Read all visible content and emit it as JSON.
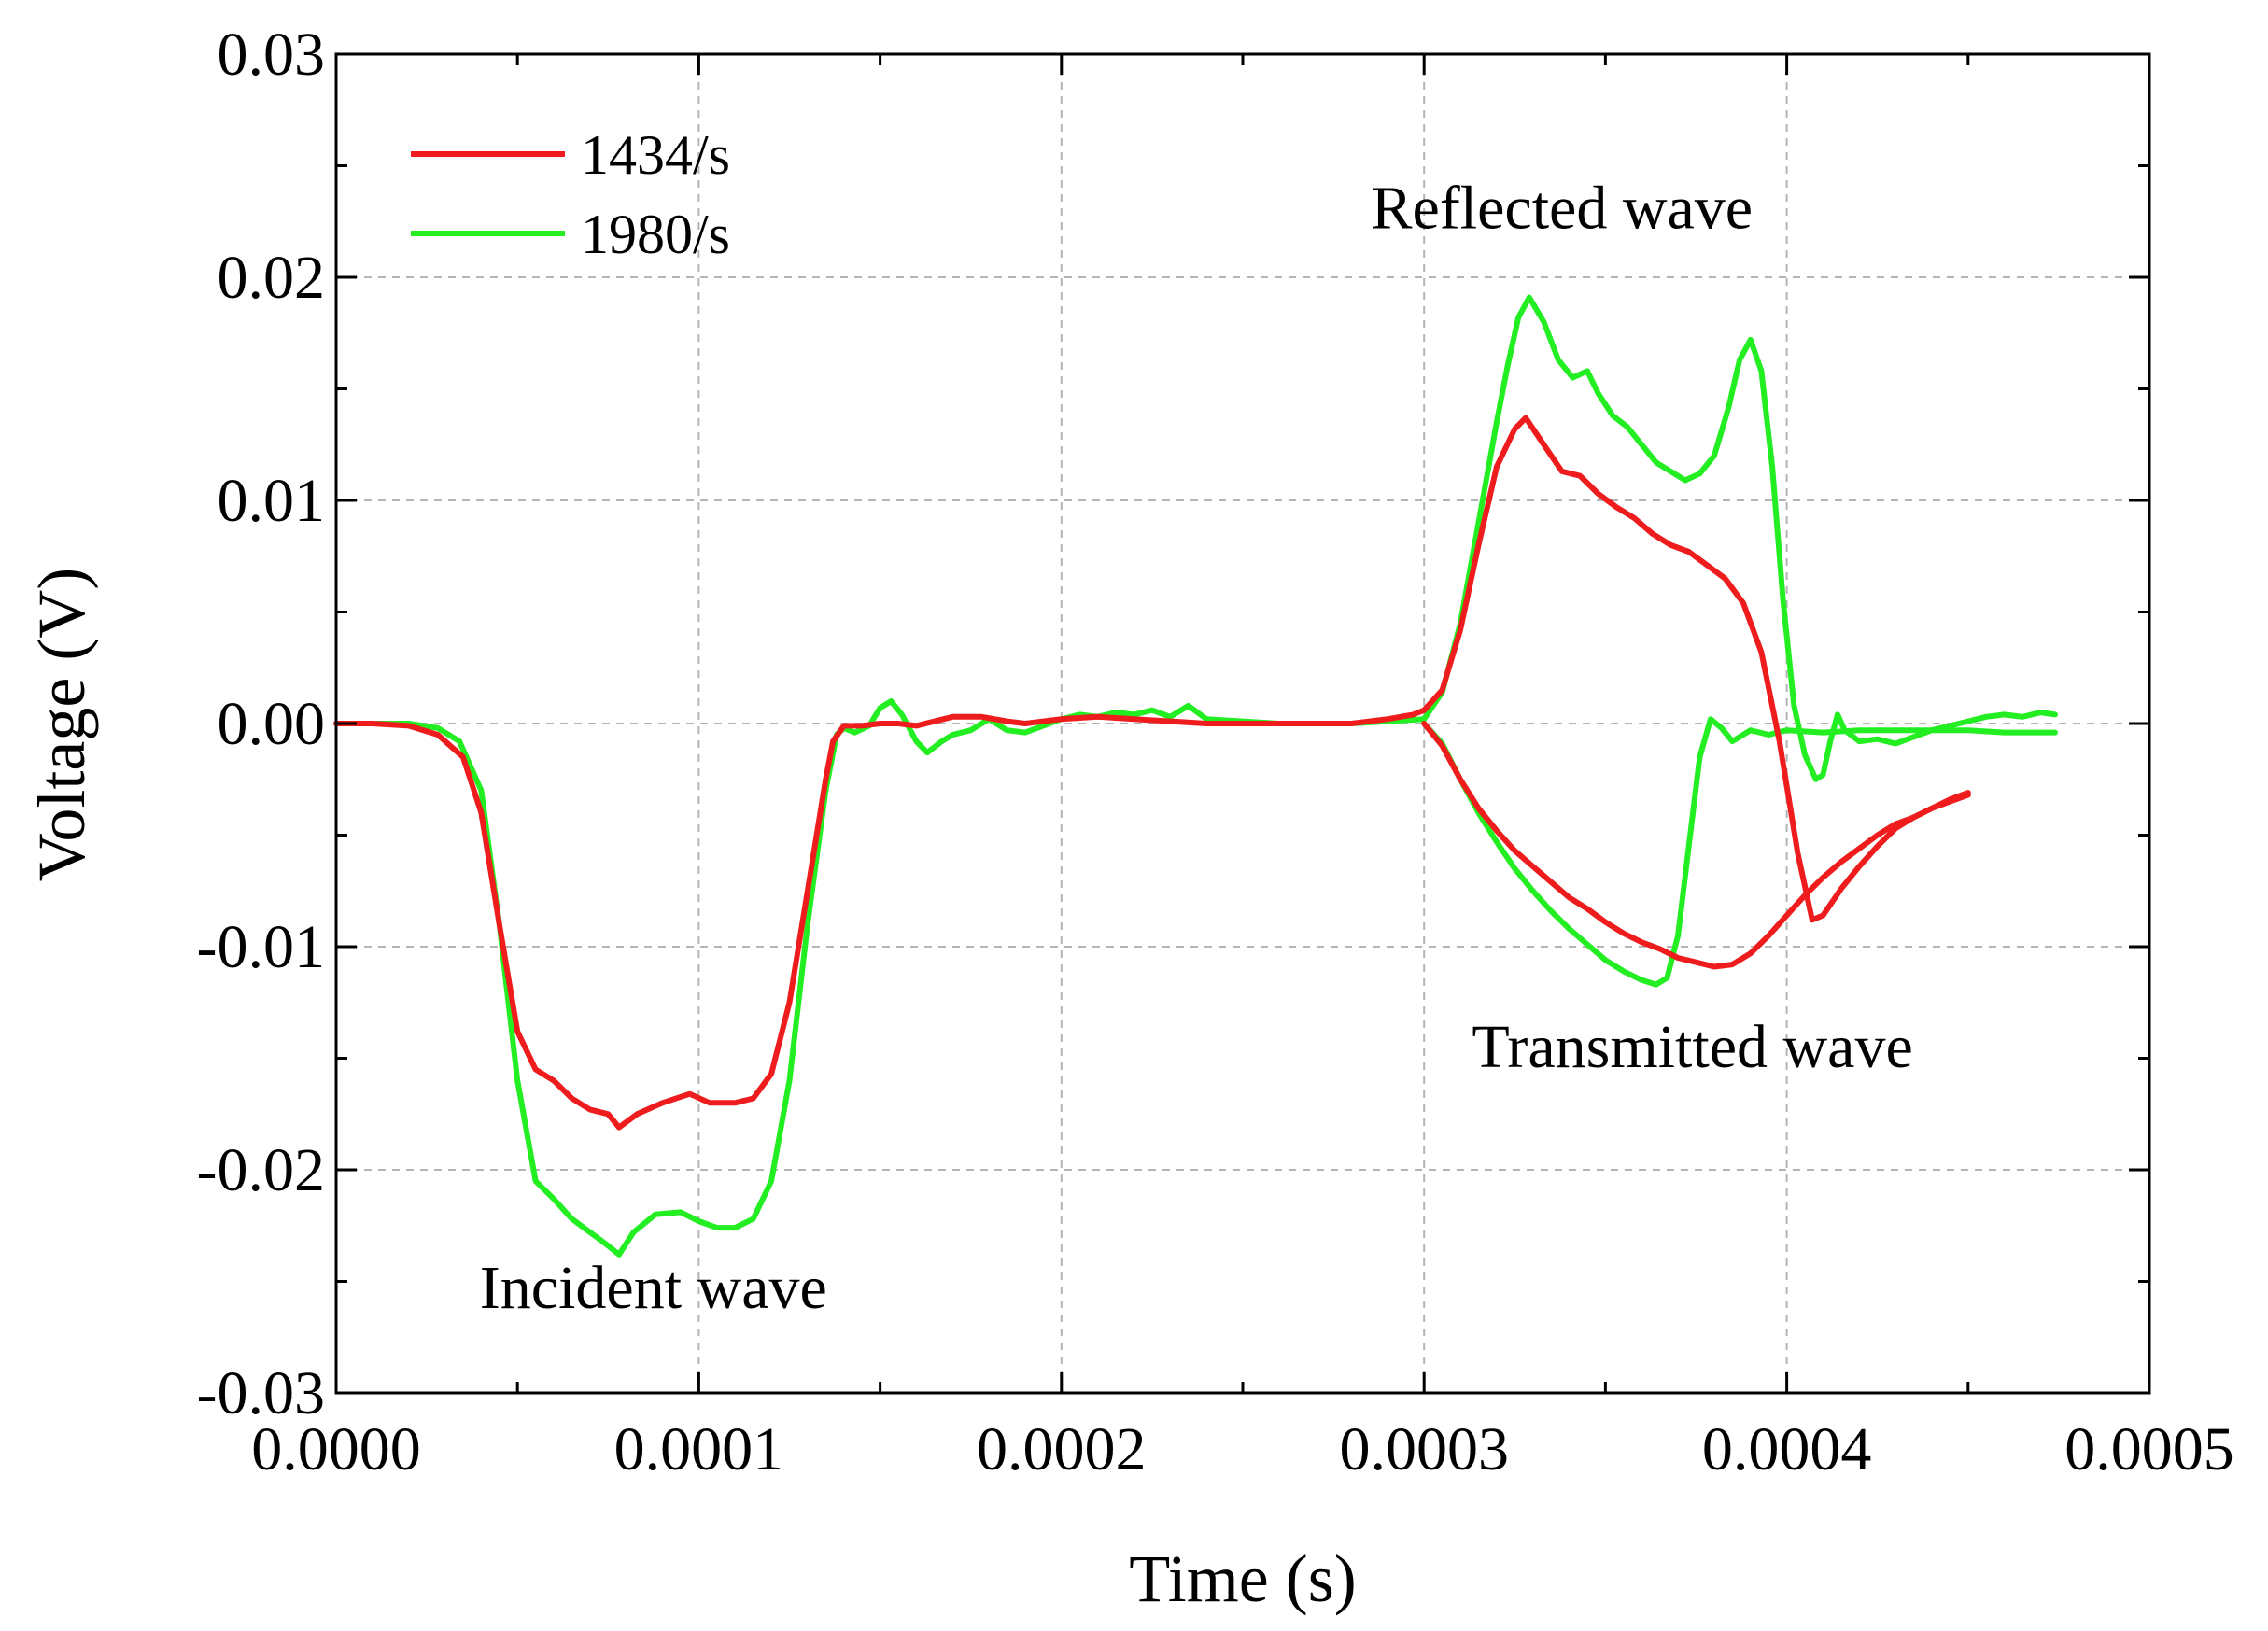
{
  "chart_data": {
    "type": "line",
    "title": "",
    "xlabel": "Time (s)",
    "ylabel": "Voltage (V)",
    "xlim": [
      0,
      0.0005
    ],
    "ylim": [
      -0.03,
      0.03
    ],
    "grid": true,
    "legend_position": "top-left",
    "x_ticks": [
      {
        "value": 0.0,
        "label": "0.0000"
      },
      {
        "value": 0.0001,
        "label": "0.0001"
      },
      {
        "value": 0.0002,
        "label": "0.0002"
      },
      {
        "value": 0.0003,
        "label": "0.0003"
      },
      {
        "value": 0.0004,
        "label": "0.0004"
      },
      {
        "value": 0.0005,
        "label": "0.0005"
      }
    ],
    "y_ticks": [
      {
        "value": 0.03,
        "label": "0.03"
      },
      {
        "value": 0.02,
        "label": "0.02"
      },
      {
        "value": 0.01,
        "label": "0.01"
      },
      {
        "value": 0.0,
        "label": "0.00"
      },
      {
        "value": -0.01,
        "label": "-0.01"
      },
      {
        "value": -0.02,
        "label": "-0.02"
      },
      {
        "value": -0.03,
        "label": "-0.03"
      }
    ],
    "annotations": [
      {
        "text": "Reflected wave",
        "x": 0.000338,
        "y": 0.0222
      },
      {
        "text": "Incident wave",
        "x": 8.75e-05,
        "y": -0.0262
      },
      {
        "text": "Transmitted wave",
        "x": 0.000374,
        "y": -0.0154
      }
    ],
    "series": [
      {
        "name": "1434/s",
        "color": "#ee1c1c",
        "segments": [
          {
            "role": "incident",
            "x": [
              0,
              1e-05,
              2e-05,
              2.8e-05,
              3.5e-05,
              4e-05,
              4.5e-05,
              5e-05,
              5.5e-05,
              6e-05,
              6.5e-05,
              7e-05,
              7.5e-05,
              7.8e-05,
              8.3e-05,
              9e-05,
              9.75e-05,
              0.000103,
              0.00011,
              0.000115,
              0.00012,
              0.000125,
              0.00013,
              0.000135,
              0.000137,
              0.00014,
              0.000145,
              0.00015,
              0.000155,
              0.00016,
              0.000165,
              0.00017,
              0.000178,
              0.000185,
              0.00019,
              0.0002,
              0.00021,
              0.00022,
              0.00023,
              0.00024,
              0.00025,
              0.00026,
              0.00027,
              0.00028,
              0.00029,
              0.000297,
              0.0003
            ],
            "y": [
              0,
              0,
              -0.0001,
              -0.0005,
              -0.0015,
              -0.004,
              -0.009,
              -0.0138,
              -0.0155,
              -0.016,
              -0.0168,
              -0.0173,
              -0.0175,
              -0.0181,
              -0.0175,
              -0.017,
              -0.0166,
              -0.017,
              -0.017,
              -0.0168,
              -0.0157,
              -0.0125,
              -0.0075,
              -0.0025,
              -0.0008,
              -0.0001,
              -0.0001,
              0.0,
              0.0,
              -0.0001,
              0.0001,
              0.0003,
              0.0003,
              0.0001,
              0.0,
              0.0002,
              0.0003,
              0.0002,
              0.0001,
              0.0,
              0.0,
              0.0,
              0.0,
              0.0,
              0.0002,
              0.0004,
              0.0006
            ]
          },
          {
            "role": "reflected",
            "x": [
              0.0003,
              0.000305,
              0.00031,
              0.000315,
              0.00032,
              0.000325,
              0.000328,
              0.000333,
              0.000338,
              0.000343,
              0.000348,
              0.000353,
              0.000358,
              0.000363,
              0.000368,
              0.000373,
              0.000378,
              0.000383,
              0.000388,
              0.000393,
              0.000398,
              0.000403,
              0.000407,
              0.00041,
              0.000415,
              0.00042,
              0.000425,
              0.00043,
              0.000435,
              0.00044,
              0.000445,
              0.00045
            ],
            "y": [
              0.0006,
              0.0015,
              0.0042,
              0.008,
              0.0115,
              0.0132,
              0.0137,
              0.0125,
              0.0113,
              0.0111,
              0.0103,
              0.0097,
              0.0092,
              0.0085,
              0.008,
              0.0077,
              0.0071,
              0.0065,
              0.0054,
              0.0032,
              -0.0008,
              -0.0058,
              -0.0088,
              -0.0086,
              -0.0074,
              -0.0064,
              -0.0055,
              -0.0047,
              -0.0042,
              -0.0038,
              -0.0034,
              -0.0031
            ]
          },
          {
            "role": "transmitted",
            "x": [
              0.0003,
              0.000305,
              0.00031,
              0.000315,
              0.00032,
              0.000325,
              0.00033,
              0.000335,
              0.00034,
              0.000345,
              0.00035,
              0.000355,
              0.00036,
              0.000365,
              0.00037,
              0.000375,
              0.00038,
              0.000385,
              0.00039,
              0.000395,
              0.0004,
              0.000405,
              0.00041,
              0.000415,
              0.00042,
              0.000425,
              0.00043,
              0.000435,
              0.00044,
              0.000445,
              0.00045
            ],
            "y": [
              0.0,
              -0.001,
              -0.0025,
              -0.0038,
              -0.0048,
              -0.0057,
              -0.0064,
              -0.0071,
              -0.0078,
              -0.0083,
              -0.0089,
              -0.0094,
              -0.0098,
              -0.0101,
              -0.0105,
              -0.0107,
              -0.0109,
              -0.0108,
              -0.0103,
              -0.0095,
              -0.0086,
              -0.0077,
              -0.0069,
              -0.0062,
              -0.0056,
              -0.005,
              -0.0045,
              -0.0042,
              -0.0038,
              -0.0035,
              -0.0032
            ]
          }
        ]
      },
      {
        "name": "1980/s",
        "color": "#22ee22",
        "segments": [
          {
            "role": "incident",
            "x": [
              0,
              1e-05,
              2e-05,
              2.8e-05,
              3.4e-05,
              4e-05,
              4.5e-05,
              5e-05,
              5.5e-05,
              6e-05,
              6.5e-05,
              7e-05,
              7.5e-05,
              7.8e-05,
              8.2e-05,
              8.8e-05,
              9.5e-05,
              0.0001,
              0.000105,
              0.00011,
              0.000115,
              0.00012,
              0.000125,
              0.00013,
              0.000135,
              0.000138,
              0.00014,
              0.000143,
              0.000147,
              0.00015,
              0.000153,
              0.000156,
              0.00016,
              0.000163,
              0.000167,
              0.00017,
              0.000175,
              0.00018,
              0.000185,
              0.00019,
              0.000195,
              0.0002,
              0.000205,
              0.00021,
              0.000215,
              0.00022,
              0.000225,
              0.00023,
              0.000235,
              0.00024,
              0.00025,
              0.00026,
              0.00027,
              0.00028,
              0.00029,
              0.0003
            ],
            "y": [
              0,
              0,
              0,
              -0.0002,
              -0.0008,
              -0.003,
              -0.009,
              -0.016,
              -0.0205,
              -0.0213,
              -0.0222,
              -0.0228,
              -0.0234,
              -0.0238,
              -0.0228,
              -0.022,
              -0.0219,
              -0.0223,
              -0.0226,
              -0.0226,
              -0.0222,
              -0.0205,
              -0.016,
              -0.009,
              -0.003,
              -0.0005,
              -0.0002,
              -0.0004,
              -0.0001,
              0.0007,
              0.001,
              0.0004,
              -0.0008,
              -0.0013,
              -0.0008,
              -0.0005,
              -0.0003,
              0.0002,
              -0.0003,
              -0.0004,
              -0.0001,
              0.0002,
              0.0004,
              0.0003,
              0.0005,
              0.0004,
              0.0006,
              0.0003,
              0.0008,
              0.0002,
              0.0001,
              0.0,
              0.0,
              0.0,
              0.0001,
              0.0002
            ]
          },
          {
            "role": "reflected",
            "x": [
              0.0003,
              0.000305,
              0.00031,
              0.000315,
              0.00032,
              0.000323,
              0.000326,
              0.000329,
              0.000333,
              0.000337,
              0.000341,
              0.000345,
              0.000348,
              0.000352,
              0.000356,
              0.00036,
              0.000364,
              0.000368,
              0.000372,
              0.000376,
              0.00038,
              0.000384,
              0.000387,
              0.00039,
              0.000393,
              0.000396,
              0.000399,
              0.000402,
              0.000405,
              0.000408,
              0.00041,
              0.000412,
              0.000414,
              0.000416,
              0.00042,
              0.000425,
              0.00043,
              0.000435,
              0.00044,
              0.000445,
              0.00045,
              0.000455,
              0.00046,
              0.000465,
              0.00047,
              0.000474
            ],
            "y": [
              0.0002,
              0.0014,
              0.0045,
              0.009,
              0.0135,
              0.016,
              0.0182,
              0.0191,
              0.018,
              0.0163,
              0.0155,
              0.0158,
              0.0148,
              0.0138,
              0.0133,
              0.0125,
              0.0117,
              0.0113,
              0.0109,
              0.0112,
              0.012,
              0.0142,
              0.0163,
              0.0172,
              0.0158,
              0.0115,
              0.0055,
              0.0008,
              -0.0014,
              -0.0025,
              -0.0023,
              -0.0008,
              0.0004,
              -0.0003,
              -0.0008,
              -0.0007,
              -0.0009,
              -0.0006,
              -0.0003,
              -0.0001,
              0.0001,
              0.0003,
              0.0004,
              0.0003,
              0.0005,
              0.0004
            ]
          },
          {
            "role": "transmitted",
            "x": [
              0.0003,
              0.000305,
              0.00031,
              0.000315,
              0.00032,
              0.000325,
              0.00033,
              0.000335,
              0.00034,
              0.000345,
              0.00035,
              0.000355,
              0.00036,
              0.000364,
              0.000367,
              0.00037,
              0.000373,
              0.000376,
              0.000379,
              0.000382,
              0.000385,
              0.00039,
              0.000395,
              0.0004,
              0.00041,
              0.00042,
              0.00043,
              0.00044,
              0.00045,
              0.00046,
              0.00047,
              0.000474
            ],
            "y": [
              0.0,
              -0.0009,
              -0.0025,
              -0.004,
              -0.0053,
              -0.0065,
              -0.0075,
              -0.0084,
              -0.0092,
              -0.0099,
              -0.0106,
              -0.0111,
              -0.0115,
              -0.0117,
              -0.0114,
              -0.0095,
              -0.0055,
              -0.0015,
              0.0002,
              -0.0002,
              -0.0008,
              -0.0003,
              -0.0005,
              -0.0003,
              -0.0004,
              -0.0003,
              -0.0003,
              -0.0003,
              -0.0003,
              -0.0004,
              -0.0004,
              -0.0004
            ]
          }
        ]
      }
    ]
  }
}
